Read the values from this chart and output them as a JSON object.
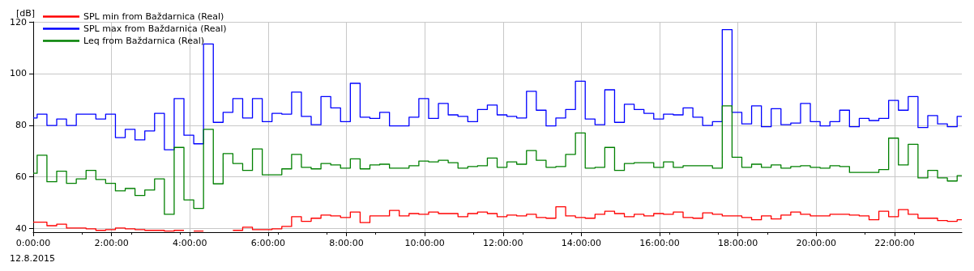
{
  "chart_data": {
    "type": "step",
    "ylabel": "[dB]",
    "annotations": [
      "12.8.2015"
    ],
    "x": [
      0,
      0.1,
      0.35,
      0.6,
      0.85,
      1.1,
      1.35,
      1.6,
      1.85,
      2.1,
      2.35,
      2.6,
      2.85,
      3.1,
      3.35,
      3.6,
      3.85,
      4.1,
      4.35,
      4.6,
      4.85,
      5.1,
      5.35,
      5.6,
      5.85,
      6.1,
      6.35,
      6.6,
      6.85,
      7.1,
      7.35,
      7.6,
      7.85,
      8.1,
      8.35,
      8.6,
      8.85,
      9.1,
      9.35,
      9.6,
      9.85,
      10.1,
      10.35,
      10.6,
      10.85,
      11.1,
      11.35,
      11.6,
      11.85,
      12.1,
      12.35,
      12.6,
      12.85,
      13.1,
      13.35,
      13.6,
      13.85,
      14.1,
      14.35,
      14.6,
      14.85,
      15.1,
      15.35,
      15.6,
      15.85,
      16.1,
      16.35,
      16.6,
      16.85,
      17.1,
      17.35,
      17.6,
      17.85,
      18.1,
      18.35,
      18.6,
      18.85,
      19.1,
      19.35,
      19.6,
      19.85,
      20.1,
      20.35,
      20.6,
      20.85,
      21.1,
      21.35,
      21.6,
      21.85,
      22.1,
      22.35,
      22.6,
      22.85,
      23.1,
      23.35,
      23.6
    ],
    "series": [
      {
        "name": "SPL min from Baždarnica (Real)",
        "color": "#ff0000",
        "values": [
          42.5,
          42.5,
          41.1,
          41.7,
          40.2,
          40.2,
          39.9,
          39.3,
          39.6,
          40.2,
          39.9,
          39.6,
          39.3,
          39.3,
          39.0,
          39.3,
          null,
          39.0,
          null,
          null,
          null,
          39.3,
          40.5,
          39.6,
          39.6,
          39.9,
          40.8,
          44.6,
          42.8,
          44.0,
          45.2,
          44.9,
          44.3,
          46.4,
          42.3,
          44.9,
          44.9,
          47.0,
          44.9,
          45.8,
          45.5,
          46.4,
          45.8,
          45.8,
          44.6,
          45.8,
          46.4,
          45.8,
          44.6,
          45.2,
          44.9,
          45.5,
          44.3,
          44.0,
          48.4,
          44.9,
          44.3,
          44.0,
          45.5,
          46.7,
          45.8,
          44.6,
          45.5,
          44.9,
          45.8,
          45.5,
          46.4,
          44.3,
          44.0,
          46.1,
          45.5,
          44.9,
          44.9,
          44.3,
          43.4,
          44.9,
          43.7,
          45.2,
          46.4,
          45.5,
          44.9,
          44.9,
          45.5,
          45.5,
          45.2,
          44.9,
          43.4,
          46.7,
          44.6,
          47.3,
          45.5,
          44.0,
          44.0,
          43.1,
          42.8,
          43.4
        ]
      },
      {
        "name": "SPL max from Baždarnica (Real)",
        "color": "#0000ff",
        "values": [
          82.8,
          84.3,
          79.9,
          82.4,
          79.9,
          84.3,
          84.3,
          82.4,
          84.3,
          75.2,
          78.4,
          74.3,
          77.8,
          84.6,
          70.5,
          90.3,
          76.1,
          72.8,
          111.4,
          81.1,
          85.0,
          90.3,
          82.8,
          90.3,
          81.4,
          84.6,
          84.3,
          92.8,
          83.4,
          80.2,
          91.1,
          86.7,
          81.4,
          96.2,
          83.1,
          82.6,
          85.0,
          79.7,
          79.7,
          83.1,
          90.3,
          82.6,
          88.4,
          84.0,
          83.4,
          81.4,
          86.1,
          87.8,
          84.0,
          83.4,
          82.8,
          93.1,
          85.8,
          79.7,
          82.8,
          86.1,
          97.0,
          82.4,
          80.2,
          93.7,
          81.1,
          88.1,
          86.1,
          84.6,
          82.4,
          84.3,
          84.0,
          86.7,
          83.1,
          79.9,
          81.4,
          117.0,
          85.0,
          80.5,
          87.5,
          79.4,
          86.4,
          80.2,
          80.8,
          88.4,
          81.4,
          79.7,
          81.4,
          85.8,
          79.4,
          82.6,
          81.8,
          82.6,
          89.6,
          85.8,
          91.1,
          79.1,
          83.7,
          80.5,
          79.4,
          83.4
        ]
      },
      {
        "name": "Leq from Baždarnica (Real)",
        "color": "#008000",
        "values": [
          61.4,
          68.4,
          58.1,
          62.2,
          57.5,
          59.2,
          62.5,
          59.0,
          57.5,
          54.6,
          55.5,
          52.8,
          54.9,
          59.2,
          45.5,
          71.4,
          51.1,
          47.8,
          78.4,
          57.3,
          69.0,
          65.2,
          62.5,
          70.8,
          60.8,
          60.8,
          63.1,
          68.7,
          63.7,
          63.1,
          65.2,
          64.6,
          63.4,
          67.0,
          63.1,
          64.6,
          64.9,
          63.4,
          63.4,
          64.3,
          66.1,
          65.8,
          66.4,
          65.5,
          63.4,
          64.0,
          64.3,
          67.3,
          63.7,
          65.8,
          64.9,
          70.2,
          66.4,
          63.7,
          64.0,
          68.7,
          77.0,
          63.4,
          63.7,
          71.4,
          62.5,
          65.2,
          65.5,
          65.5,
          63.7,
          65.8,
          63.7,
          64.3,
          64.3,
          64.3,
          63.4,
          87.5,
          67.6,
          63.7,
          64.9,
          63.7,
          64.6,
          63.4,
          64.0,
          64.3,
          63.7,
          63.4,
          64.3,
          64.0,
          61.7,
          61.7,
          61.7,
          62.8,
          75.0,
          64.6,
          72.6,
          59.6,
          62.5,
          59.6,
          58.4,
          60.5
        ]
      }
    ],
    "xlim": [
      0,
      23.72
    ],
    "xticks": [
      {
        "value": 0,
        "label": "0:00:00"
      },
      {
        "value": 2,
        "label": "2:00:00"
      },
      {
        "value": 4,
        "label": "4:00:00"
      },
      {
        "value": 6,
        "label": "6:00:00"
      },
      {
        "value": 8,
        "label": "8:00:00"
      },
      {
        "value": 10,
        "label": "10:00:00"
      },
      {
        "value": 12,
        "label": "12:00:00"
      },
      {
        "value": 14,
        "label": "14:00:00"
      },
      {
        "value": 16,
        "label": "16:00:00"
      },
      {
        "value": 18,
        "label": "18:00:00"
      },
      {
        "value": 20,
        "label": "20:00:00"
      },
      {
        "value": 22,
        "label": "22:00:00"
      }
    ],
    "ylim": [
      38.6,
      120
    ],
    "yticks": [
      40,
      60,
      80,
      100,
      120
    ],
    "grid": true,
    "legend": "top left"
  }
}
